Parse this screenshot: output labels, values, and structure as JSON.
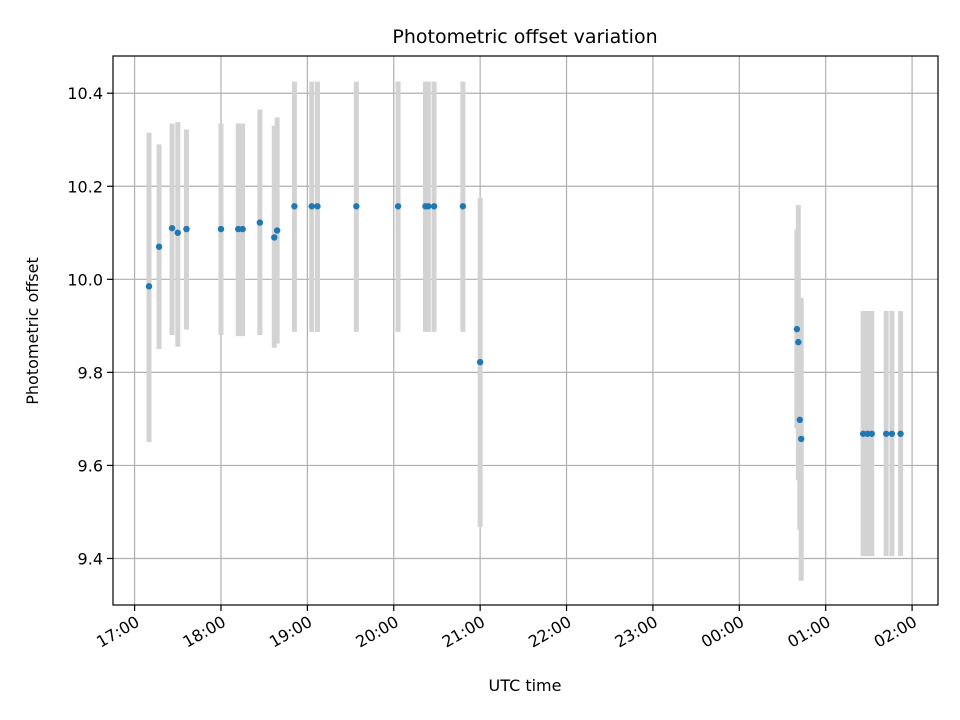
{
  "chart_data": {
    "type": "scatter",
    "title": "Photometric offset variation",
    "xlabel": "UTC time",
    "ylabel": "Photometric offset",
    "x_axis": {
      "kind": "time",
      "range": [
        "2023-01-01T16:45",
        "2023-01-02T02:18"
      ],
      "ticks": [
        "17:00",
        "18:00",
        "19:00",
        "20:00",
        "21:00",
        "22:00",
        "23:00",
        "00:00",
        "01:00",
        "02:00"
      ]
    },
    "y_axis": {
      "range": [
        9.3,
        10.48
      ],
      "ticks": [
        "9.4",
        "9.6",
        "9.8",
        "10.0",
        "10.2",
        "10.4"
      ]
    },
    "grid": true,
    "colors": {
      "point": "#1f77b4",
      "errorbar": "#d3d3d3",
      "grid": "#b0b0b0"
    },
    "points": [
      {
        "t": "17:10",
        "y": 9.985,
        "lo": 9.65,
        "hi": 10.315
      },
      {
        "t": "17:17",
        "y": 10.07,
        "lo": 9.85,
        "hi": 10.29
      },
      {
        "t": "17:26",
        "y": 10.11,
        "lo": 9.88,
        "hi": 10.335
      },
      {
        "t": "17:30",
        "y": 10.1,
        "lo": 9.855,
        "hi": 10.338
      },
      {
        "t": "17:36",
        "y": 10.108,
        "lo": 9.892,
        "hi": 10.322
      },
      {
        "t": "18:00",
        "y": 10.108,
        "lo": 9.88,
        "hi": 10.335
      },
      {
        "t": "18:12",
        "y": 10.108,
        "lo": 9.878,
        "hi": 10.335
      },
      {
        "t": "18:15",
        "y": 10.108,
        "lo": 9.878,
        "hi": 10.335
      },
      {
        "t": "18:27",
        "y": 10.122,
        "lo": 9.88,
        "hi": 10.365
      },
      {
        "t": "18:37",
        "y": 10.09,
        "lo": 9.853,
        "hi": 10.33
      },
      {
        "t": "18:39",
        "y": 10.105,
        "lo": 9.862,
        "hi": 10.348
      },
      {
        "t": "18:51",
        "y": 10.157,
        "lo": 9.887,
        "hi": 10.425
      },
      {
        "t": "19:03",
        "y": 10.157,
        "lo": 9.887,
        "hi": 10.425
      },
      {
        "t": "19:07",
        "y": 10.157,
        "lo": 9.887,
        "hi": 10.425
      },
      {
        "t": "19:34",
        "y": 10.157,
        "lo": 9.887,
        "hi": 10.425
      },
      {
        "t": "20:03",
        "y": 10.157,
        "lo": 9.887,
        "hi": 10.425
      },
      {
        "t": "20:22",
        "y": 10.157,
        "lo": 9.887,
        "hi": 10.425
      },
      {
        "t": "20:24",
        "y": 10.157,
        "lo": 9.887,
        "hi": 10.425
      },
      {
        "t": "20:28",
        "y": 10.157,
        "lo": 9.887,
        "hi": 10.425
      },
      {
        "t": "20:48",
        "y": 10.157,
        "lo": 9.887,
        "hi": 10.425
      },
      {
        "t": "21:00",
        "y": 9.822,
        "lo": 9.468,
        "hi": 10.175
      },
      {
        "t": "00:40",
        "y": 9.893,
        "lo": 9.68,
        "hi": 10.107
      },
      {
        "t": "00:41",
        "y": 9.865,
        "lo": 9.568,
        "hi": 10.16
      },
      {
        "t": "00:42",
        "y": 9.698,
        "lo": 9.462,
        "hi": 9.935
      },
      {
        "t": "00:43",
        "y": 9.657,
        "lo": 9.352,
        "hi": 9.96
      },
      {
        "t": "01:26",
        "y": 9.668,
        "lo": 9.405,
        "hi": 9.932
      },
      {
        "t": "01:29",
        "y": 9.668,
        "lo": 9.405,
        "hi": 9.932
      },
      {
        "t": "01:32",
        "y": 9.668,
        "lo": 9.405,
        "hi": 9.932
      },
      {
        "t": "01:42",
        "y": 9.668,
        "lo": 9.405,
        "hi": 9.932
      },
      {
        "t": "01:46",
        "y": 9.668,
        "lo": 9.405,
        "hi": 9.932
      },
      {
        "t": "01:52",
        "y": 9.668,
        "lo": 9.405,
        "hi": 9.932
      }
    ]
  }
}
